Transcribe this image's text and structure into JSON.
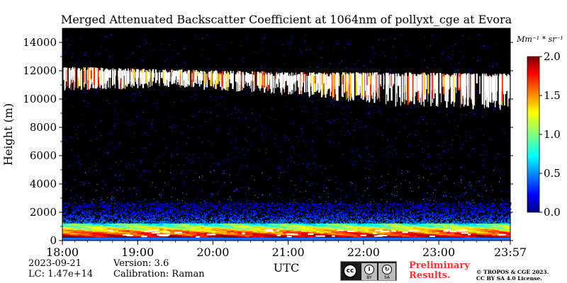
{
  "chart_data": {
    "type": "heatmap",
    "title": "Merged Attenuated Backscatter Coefficient at 1064nm of pollyxt_cge at Evora",
    "xlabel": "UTC",
    "ylabel": "Height (m)",
    "x_ticks": [
      "18:00",
      "19:00",
      "20:00",
      "21:00",
      "22:00",
      "23:00",
      "23:57"
    ],
    "x_tick_values": [
      18.0,
      19.0,
      20.0,
      21.0,
      22.0,
      23.0,
      23.95
    ],
    "xlim": [
      18.0,
      23.95
    ],
    "y_ticks": [
      0,
      2000,
      4000,
      6000,
      8000,
      10000,
      12000,
      14000
    ],
    "ylim": [
      0,
      15000
    ],
    "colorbar": {
      "unit": "Mm⁻¹ * sr⁻¹",
      "ticks": [
        "0.0",
        "0.5",
        "1.0",
        "1.5",
        "2.0"
      ],
      "tick_values": [
        0.0,
        0.5,
        1.0,
        1.5,
        2.0
      ],
      "range": [
        0.0,
        2.0
      ],
      "colormap": "jet"
    },
    "layers": [
      {
        "feature": "cirrus cloud",
        "time_range": [
          18.0,
          23.95
        ],
        "base_m": [
          10800,
          11000,
          10500,
          9800,
          9500
        ],
        "top_m": [
          12300,
          12100,
          11900,
          11900,
          11800
        ],
        "value": "> 2.0"
      },
      {
        "feature": "aerosol layer",
        "time_range": [
          18.0,
          23.95
        ],
        "height_range_m": [
          200,
          1200
        ],
        "value": "1.3 - 2.0"
      },
      {
        "feature": "aerosol transition",
        "time_range": [
          18.0,
          23.95
        ],
        "height_range_m": [
          1200,
          2700
        ],
        "value": "0.2 - 0.8"
      }
    ]
  },
  "meta": {
    "date": "2023-09-21",
    "lc": "LC: 1.47e+14",
    "version": "Version: 3.6",
    "calibration": "Calibration: Raman"
  },
  "footer": {
    "cc_label_by": "BY",
    "cc_label_sa": "SA",
    "cc_text": "cc",
    "preliminary_line1": "Preliminary",
    "preliminary_line2": "Results.",
    "copyright_line1": "© TROPOS & CGE 2023.",
    "copyright_line2": "CC BY SA 4.0 License."
  },
  "colors": {
    "background_plot": "#000000",
    "preliminary_text": "#ff3030"
  }
}
